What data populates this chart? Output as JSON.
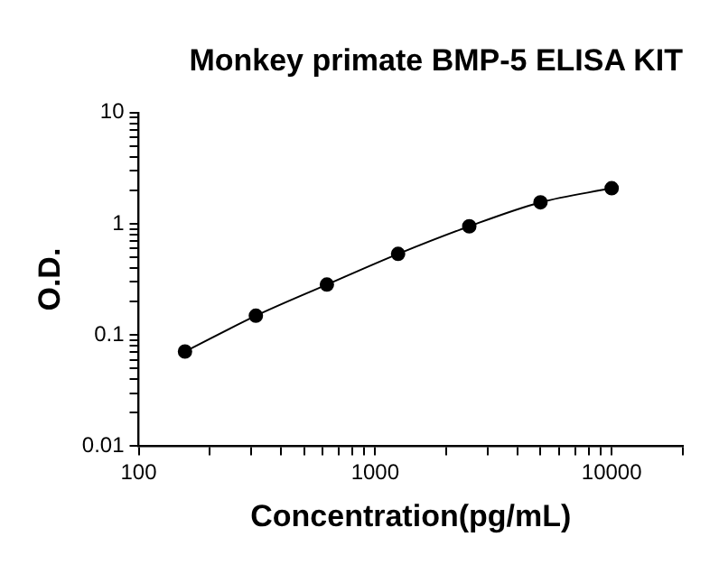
{
  "chart_data": {
    "type": "line",
    "title": "Monkey primate BMP-5 ELISA KIT",
    "xlabel": "Concentration(pg/mL)",
    "ylabel": "O.D.",
    "x": [
      157,
      313,
      625,
      1250,
      2500,
      5000,
      10000
    ],
    "series": [
      {
        "color": "#000000",
        "values": [
          0.071,
          0.149,
          0.284,
          0.536,
          0.95,
          1.56,
          2.09
        ]
      }
    ],
    "log": "xy",
    "xlim": [
      100,
      20000
    ],
    "ylim": [
      0.01,
      10
    ],
    "xticks": [
      100,
      {
        "value": 200,
        "label": null
      },
      {
        "value": 300,
        "label": null
      },
      {
        "value": 400,
        "label": null
      },
      {
        "value": 500,
        "label": null
      },
      {
        "value": 600,
        "label": null
      },
      {
        "value": 700,
        "label": null
      },
      {
        "value": 800,
        "label": null
      },
      {
        "value": 900,
        "label": null
      },
      1000,
      {
        "value": 2000,
        "label": null
      },
      {
        "value": 3000,
        "label": null
      },
      {
        "value": 4000,
        "label": null
      },
      {
        "value": 5000,
        "label": null
      },
      {
        "value": 6000,
        "label": null
      },
      {
        "value": 7000,
        "label": null
      },
      {
        "value": 8000,
        "label": null
      },
      {
        "value": 9000,
        "label": null
      },
      10000,
      {
        "value": 20000,
        "label": null
      }
    ],
    "yticks": [
      0.01,
      {
        "value": 0.02,
        "label": null
      },
      {
        "value": 0.03,
        "label": null
      },
      {
        "value": 0.04,
        "label": null
      },
      {
        "value": 0.05,
        "label": null
      },
      {
        "value": 0.06,
        "label": null
      },
      {
        "value": 0.07,
        "label": null
      },
      {
        "value": 0.08,
        "label": null
      },
      {
        "value": 0.09,
        "label": null
      },
      0.1,
      {
        "value": 0.2,
        "label": null
      },
      {
        "value": 0.3,
        "label": null
      },
      {
        "value": 0.4,
        "label": null
      },
      {
        "value": 0.5,
        "label": null
      },
      {
        "value": 0.6,
        "label": null
      },
      {
        "value": 0.7,
        "label": null
      },
      {
        "value": 0.8,
        "label": null
      },
      {
        "value": 0.9,
        "label": null
      },
      1,
      {
        "value": 2,
        "label": null
      },
      {
        "value": 3,
        "label": null
      },
      {
        "value": 4,
        "label": null
      },
      {
        "value": 5,
        "label": null
      },
      {
        "value": 6,
        "label": null
      },
      {
        "value": 7,
        "label": null
      },
      {
        "value": 8,
        "label": null
      },
      {
        "value": 9,
        "label": null
      },
      10
    ],
    "grid": false,
    "legend": false,
    "marker": "circle",
    "line_style": "solid"
  }
}
